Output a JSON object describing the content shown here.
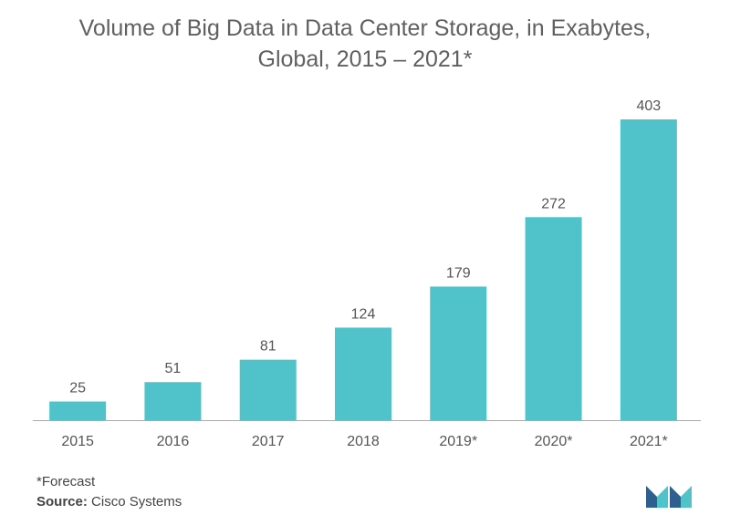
{
  "title_line1": "Volume of Big Data in Data Center Storage, in Exabytes,",
  "title_line2": "Global, 2015 – 2021*",
  "footnote": "*Forecast",
  "source_label": "Source:",
  "source_value": "Cisco Systems",
  "colors": {
    "bar": "#4fc3c9",
    "axis": "#aaaaaa",
    "logo_dark": "#2f5f8e",
    "logo_light": "#4fc3c9"
  },
  "chart_data": {
    "type": "bar",
    "title": "Volume of Big Data in Data Center Storage, in Exabytes, Global, 2015 – 2021*",
    "categories": [
      "2015",
      "2016",
      "2017",
      "2018",
      "2019*",
      "2020*",
      "2021*"
    ],
    "values": [
      25,
      51,
      81,
      124,
      179,
      272,
      403
    ],
    "xlabel": "",
    "ylabel": "",
    "ylim": [
      0,
      403
    ],
    "grid": false,
    "data_labels": true
  }
}
